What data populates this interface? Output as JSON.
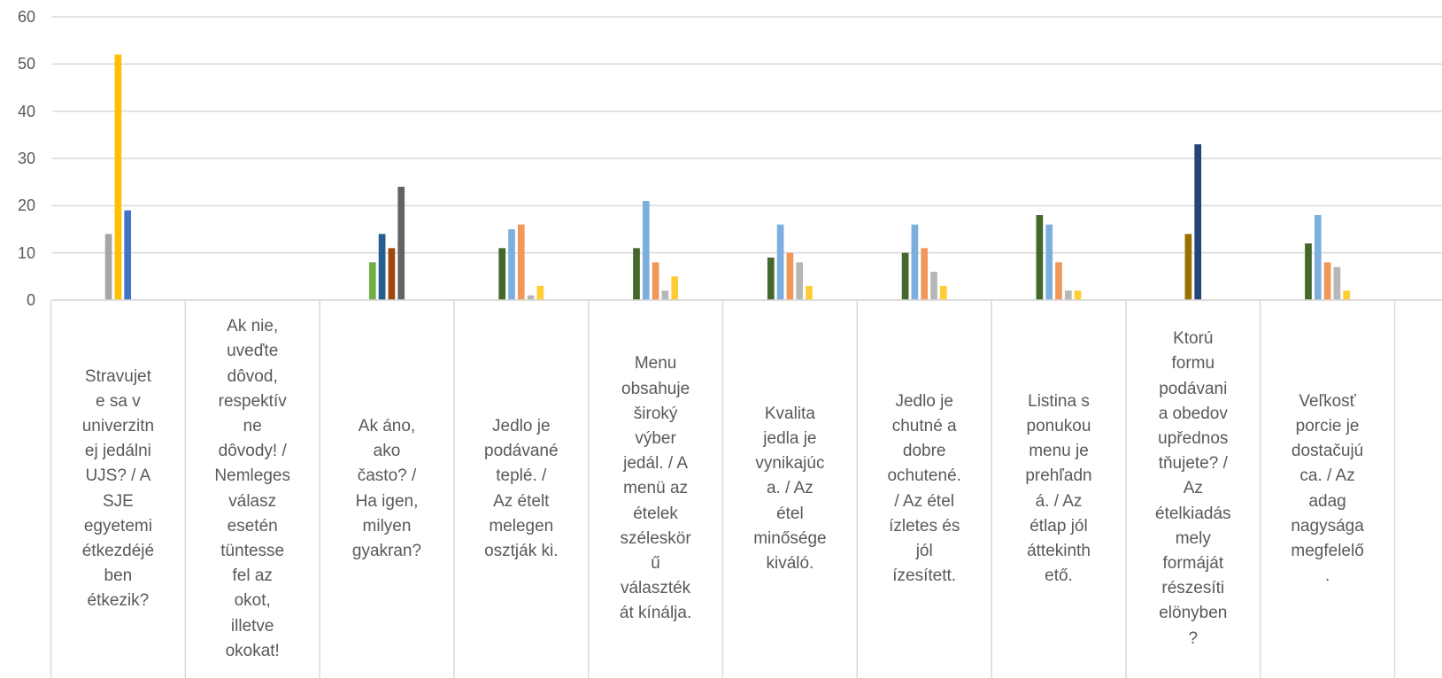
{
  "chart_data": {
    "type": "bar",
    "ylim": [
      0,
      60
    ],
    "yticks": [
      "0",
      "10",
      "20",
      "30",
      "40",
      "50",
      "60"
    ],
    "grid": true,
    "legend": "none",
    "categories": [
      "Stravujete sa v univerzitnej jedálni UJS? / A SJE egyetemi étkezdéjében étkezik?",
      "Ak nie, uveďte dôvod, respektívne dôvody! / Nemleges válasz esetén tüntesse fel az okot, illetve okokat!",
      "Ak áno, ako často? / Ha igen, milyen gyakran?",
      "Jedlo je podávané teplé.  / Az ételt melegen osztják ki.",
      "Menu obsahuje široký výber jedál. / A menü az ételek széleskörű választékát kínálja.",
      "Kvalita jedla je vynikajúca. / Az étel minősége kiváló.",
      "Jedlo je chutné a dobre ochutené. / Az étel ízletes és jól ízesített.",
      "Listina s ponukou menu je prehľadná. / Az étlap jól áttekinthető.",
      "Ktorú formu podávania obedov uprednostňujete? / Az ételkiadás mely formáját részesíti előnyben?",
      "Veľkosť porcie je dostačujúca. / Az adag nagysága megfelelő."
    ],
    "category_label_lines": [
      [
        "Stravujet",
        "e sa v",
        "univerzitn",
        "ej jedálni",
        "UJS? / A",
        "SJE",
        "egyetemi",
        "étkezdéjé",
        "ben",
        "étkezik?"
      ],
      [
        "Ak nie,",
        "uveďte",
        "dôvod,",
        "respektív",
        "ne",
        "dôvody! /",
        "Nemleges",
        "válasz",
        "esetén",
        "tüntesse",
        "fel az",
        "okot,",
        "illetve",
        "okokat!"
      ],
      [
        "Ak áno,",
        "ako",
        "často? /",
        "Ha igen,",
        "milyen",
        "gyakran?"
      ],
      [
        "Jedlo je",
        "podávané",
        "teplé.  /",
        "Az ételt",
        "melegen",
        "osztják ki."
      ],
      [
        "Menu",
        "obsahuje",
        "široký",
        "výber",
        "jedál. / A",
        "menü az",
        "ételek",
        "széleskör",
        "ű",
        "választék",
        "át kínálja."
      ],
      [
        "Kvalita",
        "jedla je",
        "vynikajúc",
        "a. / Az",
        "étel",
        "minősége",
        "kiváló."
      ],
      [
        "Jedlo je",
        "chutné a",
        "dobre",
        "ochutené.",
        "/ Az étel",
        "ízletes és",
        "jól",
        "ízesített."
      ],
      [
        "Listina s",
        "ponukou",
        "menu je",
        "prehľadn",
        "á. / Az",
        "étlap jól",
        "áttekinth",
        "ető."
      ],
      [
        "Ktorú",
        "formu",
        "podávani",
        "a obedov",
        "upřednos",
        "tňujete? /",
        "Az",
        "ételkiadás",
        "mely",
        "formáját",
        "részesíti",
        "elönyben",
        "?"
      ],
      [
        "Veľkosť",
        "porcie je",
        "dostačujú",
        "ca. / Az",
        "adag",
        "nagysága",
        "megfelelő",
        "."
      ]
    ],
    "bar_groups": [
      [
        {
          "value": 14,
          "color": "#A5A5A5"
        },
        {
          "value": 52,
          "color": "#FFC000"
        },
        {
          "value": 19,
          "color": "#4472C4"
        }
      ],
      [],
      [
        {
          "value": 8,
          "color": "#70AD47"
        },
        {
          "value": 14,
          "color": "#255E91"
        },
        {
          "value": 11,
          "color": "#9E480E"
        },
        {
          "value": 24,
          "color": "#636363"
        }
      ],
      [
        {
          "value": 11,
          "color": "#43682B"
        },
        {
          "value": 15,
          "color": "#7CAFDD"
        },
        {
          "value": 16,
          "color": "#F1975A"
        },
        {
          "value": 1,
          "color": "#B7B7B7"
        },
        {
          "value": 3,
          "color": "#FFCD33"
        }
      ],
      [
        {
          "value": 11,
          "color": "#43682B"
        },
        {
          "value": 21,
          "color": "#7CAFDD"
        },
        {
          "value": 8,
          "color": "#F1975A"
        },
        {
          "value": 2,
          "color": "#B7B7B7"
        },
        {
          "value": 5,
          "color": "#FFCD33"
        }
      ],
      [
        {
          "value": 9,
          "color": "#43682B"
        },
        {
          "value": 16,
          "color": "#7CAFDD"
        },
        {
          "value": 10,
          "color": "#F1975A"
        },
        {
          "value": 8,
          "color": "#B7B7B7"
        },
        {
          "value": 3,
          "color": "#FFCD33"
        }
      ],
      [
        {
          "value": 10,
          "color": "#43682B"
        },
        {
          "value": 16,
          "color": "#7CAFDD"
        },
        {
          "value": 11,
          "color": "#F1975A"
        },
        {
          "value": 6,
          "color": "#B7B7B7"
        },
        {
          "value": 3,
          "color": "#FFCD33"
        }
      ],
      [
        {
          "value": 18,
          "color": "#43682B"
        },
        {
          "value": 16,
          "color": "#7CAFDD"
        },
        {
          "value": 8,
          "color": "#F1975A"
        },
        {
          "value": 2,
          "color": "#B7B7B7"
        },
        {
          "value": 2,
          "color": "#FFCD33"
        }
      ],
      [
        {
          "value": 14,
          "color": "#997300"
        },
        {
          "value": 33,
          "color": "#264478"
        }
      ],
      [
        {
          "value": 12,
          "color": "#43682B"
        },
        {
          "value": 18,
          "color": "#7CAFDD"
        },
        {
          "value": 8,
          "color": "#F1975A"
        },
        {
          "value": 7,
          "color": "#B7B7B7"
        },
        {
          "value": 2,
          "color": "#FFCD33"
        }
      ]
    ],
    "title": "",
    "xlabel": "",
    "ylabel": ""
  },
  "colors": {
    "gridline": "#D9D9D9",
    "axis_text": "#595959",
    "background": "#FFFFFF"
  }
}
